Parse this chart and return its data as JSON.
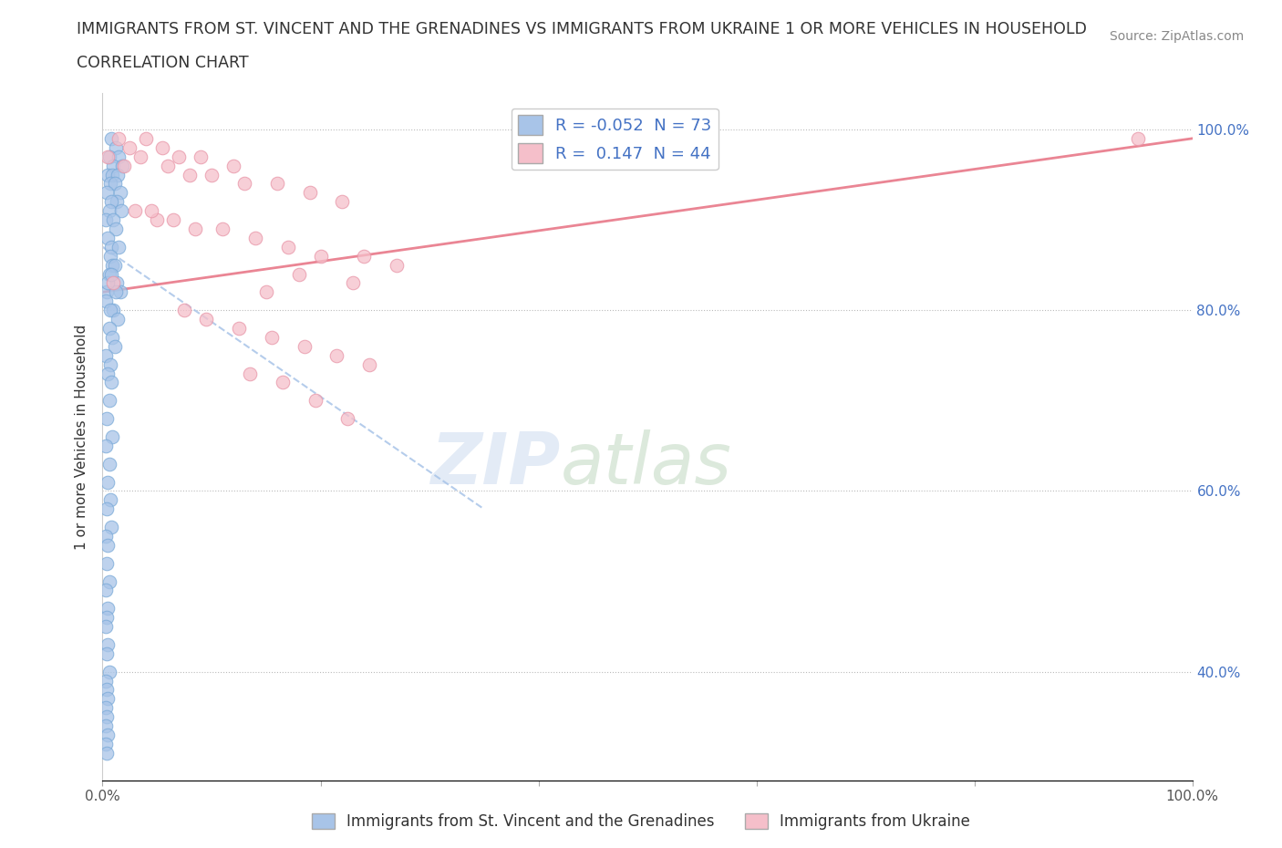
{
  "title_line1": "IMMIGRANTS FROM ST. VINCENT AND THE GRENADINES VS IMMIGRANTS FROM UKRAINE 1 OR MORE VEHICLES IN HOUSEHOLD",
  "title_line2": "CORRELATION CHART",
  "source_text": "Source: ZipAtlas.com",
  "ylabel": "1 or more Vehicles in Household",
  "xlim": [
    0.0,
    1.0
  ],
  "ylim": [
    0.28,
    1.04
  ],
  "xticks": [
    0.0,
    0.2,
    0.4,
    0.6,
    0.8,
    1.0
  ],
  "xticklabels": [
    "0.0%",
    "",
    "",
    "",
    "",
    "100.0%"
  ],
  "yticks": [
    0.4,
    0.6,
    0.8,
    1.0
  ],
  "yticklabels": [
    "40.0%",
    "60.0%",
    "80.0%",
    "100.0%"
  ],
  "watermark_zip": "ZIP",
  "watermark_atlas": "atlas",
  "legend_r1": "-0.052",
  "legend_n1": "73",
  "legend_r2": "0.147",
  "legend_n2": "44",
  "color_blue": "#A8C4E8",
  "color_blue_edge": "#7AAAD8",
  "color_pink": "#F5BFCA",
  "color_pink_edge": "#E896A8",
  "color_blue_line": "#A8C4E8",
  "color_pink_line": "#E87888",
  "background_color": "#FFFFFF",
  "legend_label1": "Immigrants from St. Vincent and the Grenadines",
  "legend_label2": "Immigrants from Ukraine",
  "blue_x": [
    0.008,
    0.012,
    0.006,
    0.015,
    0.01,
    0.018,
    0.005,
    0.009,
    0.014,
    0.007,
    0.011,
    0.016,
    0.004,
    0.013,
    0.008,
    0.006,
    0.017,
    0.003,
    0.01,
    0.012,
    0.005,
    0.008,
    0.015,
    0.007,
    0.009,
    0.011,
    0.006,
    0.013,
    0.004,
    0.016,
    0.003,
    0.01,
    0.007,
    0.012,
    0.005,
    0.008,
    0.014,
    0.006,
    0.009,
    0.011,
    0.003,
    0.007,
    0.005,
    0.008,
    0.006,
    0.004,
    0.009,
    0.003,
    0.006,
    0.005,
    0.007,
    0.004,
    0.008,
    0.003,
    0.005,
    0.004,
    0.006,
    0.003,
    0.005,
    0.004,
    0.003,
    0.005,
    0.004,
    0.006,
    0.003,
    0.004,
    0.005,
    0.003,
    0.004,
    0.003,
    0.005,
    0.003,
    0.004
  ],
  "blue_y": [
    0.99,
    0.98,
    0.97,
    0.97,
    0.96,
    0.96,
    0.95,
    0.95,
    0.95,
    0.94,
    0.94,
    0.93,
    0.93,
    0.92,
    0.92,
    0.91,
    0.91,
    0.9,
    0.9,
    0.89,
    0.88,
    0.87,
    0.87,
    0.86,
    0.85,
    0.85,
    0.84,
    0.83,
    0.82,
    0.82,
    0.81,
    0.8,
    0.8,
    0.82,
    0.83,
    0.84,
    0.79,
    0.78,
    0.77,
    0.76,
    0.75,
    0.74,
    0.73,
    0.72,
    0.7,
    0.68,
    0.66,
    0.65,
    0.63,
    0.61,
    0.59,
    0.58,
    0.56,
    0.55,
    0.54,
    0.52,
    0.5,
    0.49,
    0.47,
    0.46,
    0.45,
    0.43,
    0.42,
    0.4,
    0.39,
    0.38,
    0.37,
    0.36,
    0.35,
    0.34,
    0.33,
    0.32,
    0.31
  ],
  "pink_x": [
    0.015,
    0.04,
    0.025,
    0.055,
    0.035,
    0.07,
    0.09,
    0.12,
    0.02,
    0.06,
    0.08,
    0.1,
    0.13,
    0.16,
    0.19,
    0.22,
    0.03,
    0.05,
    0.045,
    0.065,
    0.085,
    0.11,
    0.14,
    0.17,
    0.2,
    0.24,
    0.27,
    0.18,
    0.23,
    0.15,
    0.075,
    0.095,
    0.125,
    0.155,
    0.01,
    0.185,
    0.215,
    0.245,
    0.135,
    0.165,
    0.195,
    0.225,
    0.95,
    0.005
  ],
  "pink_y": [
    0.99,
    0.99,
    0.98,
    0.98,
    0.97,
    0.97,
    0.97,
    0.96,
    0.96,
    0.96,
    0.95,
    0.95,
    0.94,
    0.94,
    0.93,
    0.92,
    0.91,
    0.9,
    0.91,
    0.9,
    0.89,
    0.89,
    0.88,
    0.87,
    0.86,
    0.86,
    0.85,
    0.84,
    0.83,
    0.82,
    0.8,
    0.79,
    0.78,
    0.77,
    0.83,
    0.76,
    0.75,
    0.74,
    0.73,
    0.72,
    0.7,
    0.68,
    0.99,
    0.97
  ],
  "blue_trendline_x": [
    0.0,
    0.35
  ],
  "blue_trendline_y": [
    0.87,
    0.58
  ],
  "pink_trendline_x": [
    0.0,
    1.0
  ],
  "pink_trendline_y": [
    0.82,
    0.99
  ]
}
